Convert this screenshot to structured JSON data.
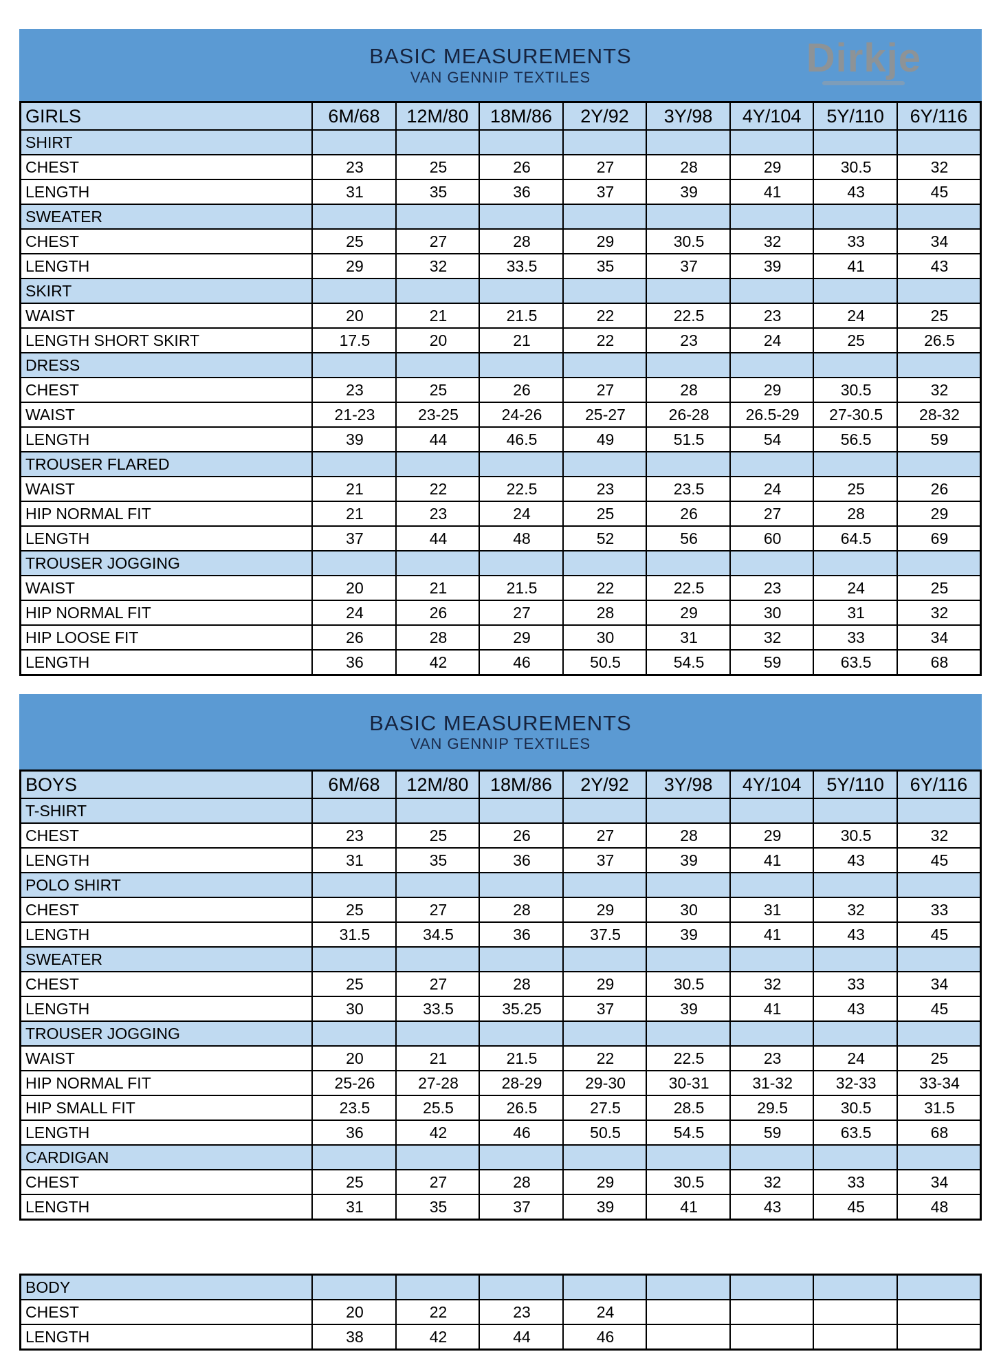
{
  "header": {
    "title": "BASIC MEASUREMENTS",
    "subtitle": "VAN GENNIP TEXTILES",
    "logo_text": "Dirkje"
  },
  "colors": {
    "band_blue": "#5b9ad3",
    "row_light_blue": "#c0daf1",
    "logo_gray": "#8d9397",
    "title_navy": "#16233e",
    "border_black": "#000000"
  },
  "sizes": [
    "6M/68",
    "12M/80",
    "18M/86",
    "2Y/92",
    "3Y/98",
    "4Y/104",
    "5Y/110",
    "6Y/116"
  ],
  "girls": {
    "label": "GIRLS",
    "sections": [
      {
        "name": "SHIRT",
        "rows": [
          {
            "label": "CHEST",
            "values": [
              "23",
              "25",
              "26",
              "27",
              "28",
              "29",
              "30.5",
              "32"
            ]
          },
          {
            "label": "LENGTH",
            "values": [
              "31",
              "35",
              "36",
              "37",
              "39",
              "41",
              "43",
              "45"
            ]
          }
        ]
      },
      {
        "name": "SWEATER",
        "rows": [
          {
            "label": "CHEST",
            "values": [
              "25",
              "27",
              "28",
              "29",
              "30.5",
              "32",
              "33",
              "34"
            ]
          },
          {
            "label": "LENGTH",
            "values": [
              "29",
              "32",
              "33.5",
              "35",
              "37",
              "39",
              "41",
              "43"
            ]
          }
        ]
      },
      {
        "name": "SKIRT",
        "rows": [
          {
            "label": "WAIST",
            "values": [
              "20",
              "21",
              "21.5",
              "22",
              "22.5",
              "23",
              "24",
              "25"
            ]
          },
          {
            "label": "LENGTH SHORT SKIRT",
            "values": [
              "17.5",
              "20",
              "21",
              "22",
              "23",
              "24",
              "25",
              "26.5"
            ]
          }
        ]
      },
      {
        "name": "DRESS",
        "rows": [
          {
            "label": "CHEST",
            "values": [
              "23",
              "25",
              "26",
              "27",
              "28",
              "29",
              "30.5",
              "32"
            ]
          },
          {
            "label": "WAIST",
            "values": [
              "21-23",
              "23-25",
              "24-26",
              "25-27",
              "26-28",
              "26.5-29",
              "27-30.5",
              "28-32"
            ]
          },
          {
            "label": "LENGTH",
            "values": [
              "39",
              "44",
              "46.5",
              "49",
              "51.5",
              "54",
              "56.5",
              "59"
            ]
          }
        ]
      },
      {
        "name": "TROUSER FLARED",
        "rows": [
          {
            "label": "WAIST",
            "values": [
              "21",
              "22",
              "22.5",
              "23",
              "23.5",
              "24",
              "25",
              "26"
            ]
          },
          {
            "label": "HIP NORMAL FIT",
            "values": [
              "21",
              "23",
              "24",
              "25",
              "26",
              "27",
              "28",
              "29"
            ]
          },
          {
            "label": "LENGTH",
            "values": [
              "37",
              "44",
              "48",
              "52",
              "56",
              "60",
              "64.5",
              "69"
            ]
          }
        ]
      },
      {
        "name": "TROUSER JOGGING",
        "rows": [
          {
            "label": "WAIST",
            "values": [
              "20",
              "21",
              "21.5",
              "22",
              "22.5",
              "23",
              "24",
              "25"
            ]
          },
          {
            "label": "HIP NORMAL FIT",
            "values": [
              "24",
              "26",
              "27",
              "28",
              "29",
              "30",
              "31",
              "32"
            ]
          },
          {
            "label": "HIP LOOSE FIT",
            "values": [
              "26",
              "28",
              "29",
              "30",
              "31",
              "32",
              "33",
              "34"
            ]
          },
          {
            "label": "LENGTH",
            "values": [
              "36",
              "42",
              "46",
              "50.5",
              "54.5",
              "59",
              "63.5",
              "68"
            ]
          }
        ]
      }
    ]
  },
  "boys": {
    "label": "BOYS",
    "sections": [
      {
        "name": "T-SHIRT",
        "rows": [
          {
            "label": "CHEST",
            "values": [
              "23",
              "25",
              "26",
              "27",
              "28",
              "29",
              "30.5",
              "32"
            ]
          },
          {
            "label": "LENGTH",
            "values": [
              "31",
              "35",
              "36",
              "37",
              "39",
              "41",
              "43",
              "45"
            ]
          }
        ]
      },
      {
        "name": "POLO SHIRT",
        "rows": [
          {
            "label": "CHEST",
            "values": [
              "25",
              "27",
              "28",
              "29",
              "30",
              "31",
              "32",
              "33"
            ]
          },
          {
            "label": "LENGTH",
            "values": [
              "31.5",
              "34.5",
              "36",
              "37.5",
              "39",
              "41",
              "43",
              "45"
            ]
          }
        ]
      },
      {
        "name": "SWEATER",
        "rows": [
          {
            "label": "CHEST",
            "values": [
              "25",
              "27",
              "28",
              "29",
              "30.5",
              "32",
              "33",
              "34"
            ]
          },
          {
            "label": "LENGTH",
            "values": [
              "30",
              "33.5",
              "35.25",
              "37",
              "39",
              "41",
              "43",
              "45"
            ]
          }
        ]
      },
      {
        "name": "TROUSER JOGGING",
        "rows": [
          {
            "label": "WAIST",
            "values": [
              "20",
              "21",
              "21.5",
              "22",
              "22.5",
              "23",
              "24",
              "25"
            ]
          },
          {
            "label": "HIP NORMAL FIT",
            "values": [
              "25-26",
              "27-28",
              "28-29",
              "29-30",
              "30-31",
              "31-32",
              "32-33",
              "33-34"
            ]
          },
          {
            "label": "HIP SMALL FIT",
            "values": [
              "23.5",
              "25.5",
              "26.5",
              "27.5",
              "28.5",
              "29.5",
              "30.5",
              "31.5"
            ]
          },
          {
            "label": "LENGTH",
            "values": [
              "36",
              "42",
              "46",
              "50.5",
              "54.5",
              "59",
              "63.5",
              "68"
            ]
          }
        ]
      },
      {
        "name": "CARDIGAN",
        "rows": [
          {
            "label": "CHEST",
            "values": [
              "25",
              "27",
              "28",
              "29",
              "30.5",
              "32",
              "33",
              "34"
            ]
          },
          {
            "label": "LENGTH",
            "values": [
              "31",
              "35",
              "37",
              "39",
              "41",
              "43",
              "45",
              "48"
            ]
          }
        ]
      }
    ]
  },
  "body_table": {
    "label": "BODY",
    "rows": [
      {
        "label": "CHEST",
        "values": [
          "20",
          "22",
          "23",
          "24",
          "",
          "",
          "",
          ""
        ]
      },
      {
        "label": "LENGTH",
        "values": [
          "38",
          "42",
          "44",
          "46",
          "",
          "",
          "",
          ""
        ]
      }
    ]
  }
}
